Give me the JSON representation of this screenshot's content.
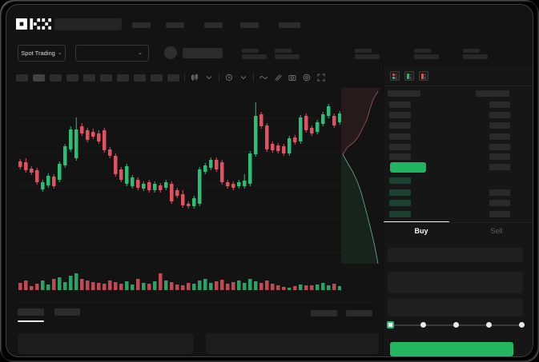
{
  "app": {
    "logo_text": "OKX"
  },
  "colors": {
    "up": "#2ebd74",
    "down": "#df5360",
    "last_price_highlight": "#22b561",
    "buy_button": "#23b55f",
    "grid": "#1b1b1b",
    "depth_ask_line": "#a05a60",
    "depth_bid_line": "#6fa894",
    "depth_ask_fill": "rgba(214,85,95,0.10)",
    "depth_bid_fill": "rgba(46,189,116,0.10)"
  },
  "header": {
    "nav_placeholder_count": 5
  },
  "market_bar": {
    "market_type_label": "Spot Trading",
    "chevron": "⌄",
    "stat_group_count": 5
  },
  "chart_toolbar": {
    "interval_button_count": 10,
    "active_interval_index": 1,
    "icons": [
      "candle-type-icon",
      "chevron-down-icon",
      "clock-icon",
      "chevron-down-icon",
      "indicator-wave-icon",
      "draw-pencil-icon",
      "camera-icon",
      "settings-gear-icon",
      "fullscreen-icon"
    ]
  },
  "orderbook": {
    "view_icons": [
      "layout-both-icon",
      "layout-bids-icon",
      "layout-asks-icon"
    ],
    "ask_rows": [
      {
        "left": true,
        "right": true
      },
      {
        "left": true,
        "right": true
      },
      {
        "left": true,
        "right": true
      },
      {
        "left": true,
        "right": true
      },
      {
        "left": true,
        "right": true
      },
      {
        "left": true,
        "right": true
      }
    ],
    "price_row": {
      "highlight": "green",
      "right_bar": true
    },
    "bid_rows": [
      {
        "left": true,
        "right": false
      },
      {
        "left": true,
        "right": true
      },
      {
        "left": true,
        "right": true
      },
      {
        "left": true,
        "right": true
      }
    ]
  },
  "trade_panel": {
    "tabs": [
      {
        "label": "Buy",
        "active": true
      },
      {
        "label": "Sell",
        "active": false
      }
    ],
    "field_count": 3,
    "slider": {
      "stop_count": 5,
      "active_stop_index": 0
    },
    "submit_label": ""
  },
  "bottom_panel": {
    "tab_count": 2,
    "active_tab_index": 0,
    "right_placeholder_count": 2,
    "content_block_count": 2
  },
  "chart_data": {
    "type": "candlestick",
    "title": "",
    "xlabel": "",
    "ylabel": "",
    "axes_note": "skeleton UI - no tick labels or price labels are visible; values in arbitrary chart units",
    "grid": "faint horizontal lines",
    "series_format": [
      "open",
      "high",
      "low",
      "close",
      "volume"
    ],
    "candles": [
      [
        148,
        151,
        138,
        141,
        9
      ],
      [
        147,
        152,
        134,
        137,
        12
      ],
      [
        139,
        142,
        131,
        134,
        5
      ],
      [
        137,
        140,
        119,
        122,
        8
      ],
      [
        113,
        125,
        110,
        122,
        12
      ],
      [
        118,
        133,
        115,
        130,
        7
      ],
      [
        129,
        132,
        114,
        117,
        14
      ],
      [
        125,
        148,
        122,
        145,
        16
      ],
      [
        143,
        170,
        140,
        167,
        10
      ],
      [
        163,
        192,
        160,
        188,
        18
      ],
      [
        152,
        203,
        149,
        188,
        21
      ],
      [
        192,
        196,
        180,
        183,
        14
      ],
      [
        187,
        190,
        172,
        175,
        12
      ],
      [
        185,
        189,
        176,
        179,
        10
      ],
      [
        183,
        187,
        170,
        173,
        9
      ],
      [
        187,
        190,
        159,
        162,
        8
      ],
      [
        163,
        166,
        152,
        155,
        12
      ],
      [
        155,
        158,
        129,
        132,
        10
      ],
      [
        138,
        141,
        122,
        125,
        8
      ],
      [
        120,
        145,
        117,
        142,
        11
      ],
      [
        117,
        131,
        114,
        128,
        7
      ],
      [
        125,
        128,
        112,
        115,
        14
      ],
      [
        114,
        123,
        111,
        120,
        9
      ],
      [
        122,
        125,
        109,
        112,
        8
      ],
      [
        112,
        123,
        109,
        120,
        11
      ],
      [
        118,
        121,
        109,
        112,
        21
      ],
      [
        115,
        125,
        112,
        122,
        12
      ],
      [
        120,
        123,
        95,
        98,
        10
      ],
      [
        112,
        115,
        102,
        105,
        7
      ],
      [
        107,
        112,
        90,
        93,
        6
      ],
      [
        95,
        98,
        89,
        92,
        9
      ],
      [
        92,
        105,
        89,
        102,
        8
      ],
      [
        95,
        141,
        92,
        138,
        12
      ],
      [
        135,
        146,
        132,
        143,
        14
      ],
      [
        140,
        153,
        137,
        150,
        9
      ],
      [
        150,
        153,
        135,
        138,
        11
      ],
      [
        147,
        150,
        119,
        122,
        13
      ],
      [
        122,
        125,
        114,
        117,
        8
      ],
      [
        120,
        123,
        112,
        115,
        10
      ],
      [
        117,
        125,
        114,
        122,
        12
      ],
      [
        117,
        132,
        114,
        124,
        9
      ],
      [
        120,
        161,
        117,
        158,
        14
      ],
      [
        157,
        222,
        154,
        205,
        11
      ],
      [
        207,
        210,
        189,
        192,
        9
      ],
      [
        193,
        196,
        160,
        163,
        12
      ],
      [
        170,
        173,
        159,
        162,
        8
      ],
      [
        168,
        171,
        158,
        161,
        6
      ],
      [
        167,
        170,
        155,
        158,
        4
      ],
      [
        158,
        180,
        155,
        177,
        3
      ],
      [
        178,
        181,
        169,
        172,
        5
      ],
      [
        173,
        206,
        170,
        203,
        7
      ],
      [
        205,
        208,
        184,
        187,
        6
      ],
      [
        190,
        193,
        180,
        183,
        6
      ],
      [
        185,
        200,
        182,
        197,
        7
      ],
      [
        195,
        210,
        192,
        207,
        9
      ],
      [
        205,
        220,
        202,
        217,
        6
      ],
      [
        205,
        208,
        190,
        193,
        8
      ],
      [
        197,
        211,
        194,
        208,
        5
      ]
    ],
    "depth": {
      "note": "vertical order-book depth chart right of candles; asks (red) top, bids (green) bottom",
      "asks_points": [
        [
          46,
          4
        ],
        [
          40,
          14
        ],
        [
          36,
          26
        ],
        [
          32,
          40
        ],
        [
          26,
          52
        ],
        [
          22,
          60
        ],
        [
          16,
          68
        ],
        [
          8,
          74
        ],
        [
          2,
          83
        ]
      ],
      "bids_points": [
        [
          2,
          83
        ],
        [
          8,
          94
        ],
        [
          14,
          104
        ],
        [
          20,
          117
        ],
        [
          25,
          131
        ],
        [
          29,
          146
        ],
        [
          33,
          161
        ],
        [
          37,
          177
        ],
        [
          41,
          194
        ],
        [
          44,
          209
        ],
        [
          46,
          220
        ]
      ]
    }
  }
}
